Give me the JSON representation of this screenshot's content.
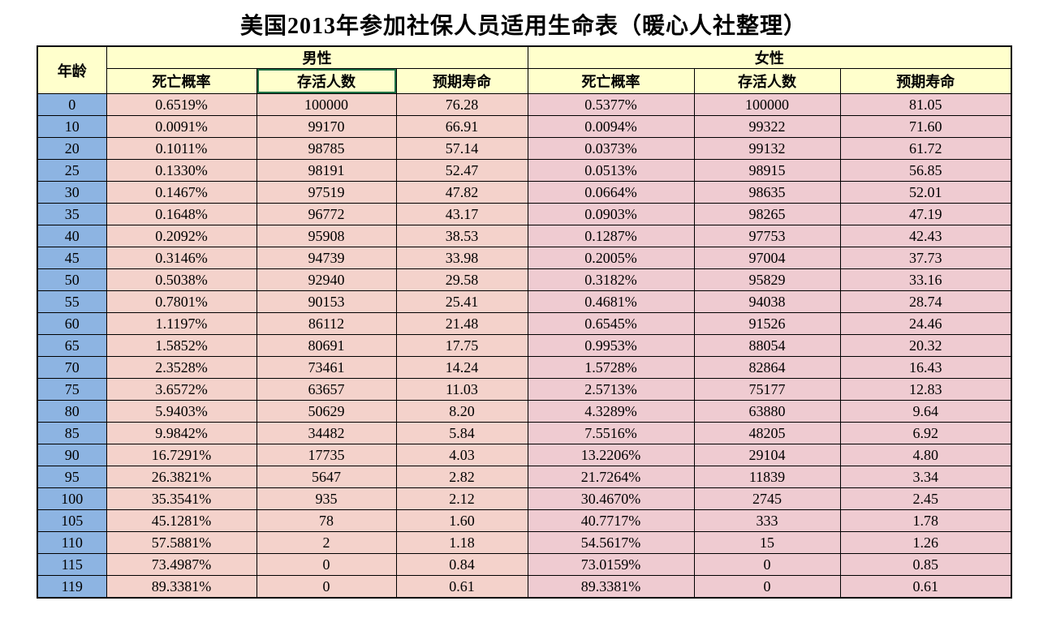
{
  "title": "美国2013年参加社保人员适用生命表（暖心人社整理）",
  "colors": {
    "header_bg": "#FFFFCC",
    "age_column_bg": "#8DB4E2",
    "male_columns_bg": "#F4D2CB",
    "female_columns_bg": "#EFCBD1",
    "selection_border": "#1F7246",
    "grid_border": "#000000"
  },
  "chart_data": {
    "type": "table",
    "title": "美国2013年参加社保人员适用生命表（暖心人社整理）",
    "age_header": "年龄",
    "groups": [
      {
        "label": "男性"
      },
      {
        "label": "女性"
      }
    ],
    "sub_headers": [
      "死亡概率",
      "存活人数",
      "预期寿命"
    ],
    "selected_header": "男性-存活人数",
    "rows": [
      {
        "age": "0",
        "male": [
          "0.6519%",
          "100000",
          "76.28"
        ],
        "female": [
          "0.5377%",
          "100000",
          "81.05"
        ]
      },
      {
        "age": "10",
        "male": [
          "0.0091%",
          "99170",
          "66.91"
        ],
        "female": [
          "0.0094%",
          "99322",
          "71.60"
        ]
      },
      {
        "age": "20",
        "male": [
          "0.1011%",
          "98785",
          "57.14"
        ],
        "female": [
          "0.0373%",
          "99132",
          "61.72"
        ]
      },
      {
        "age": "25",
        "male": [
          "0.1330%",
          "98191",
          "52.47"
        ],
        "female": [
          "0.0513%",
          "98915",
          "56.85"
        ]
      },
      {
        "age": "30",
        "male": [
          "0.1467%",
          "97519",
          "47.82"
        ],
        "female": [
          "0.0664%",
          "98635",
          "52.01"
        ]
      },
      {
        "age": "35",
        "male": [
          "0.1648%",
          "96772",
          "43.17"
        ],
        "female": [
          "0.0903%",
          "98265",
          "47.19"
        ]
      },
      {
        "age": "40",
        "male": [
          "0.2092%",
          "95908",
          "38.53"
        ],
        "female": [
          "0.1287%",
          "97753",
          "42.43"
        ]
      },
      {
        "age": "45",
        "male": [
          "0.3146%",
          "94739",
          "33.98"
        ],
        "female": [
          "0.2005%",
          "97004",
          "37.73"
        ]
      },
      {
        "age": "50",
        "male": [
          "0.5038%",
          "92940",
          "29.58"
        ],
        "female": [
          "0.3182%",
          "95829",
          "33.16"
        ]
      },
      {
        "age": "55",
        "male": [
          "0.7801%",
          "90153",
          "25.41"
        ],
        "female": [
          "0.4681%",
          "94038",
          "28.74"
        ]
      },
      {
        "age": "60",
        "male": [
          "1.1197%",
          "86112",
          "21.48"
        ],
        "female": [
          "0.6545%",
          "91526",
          "24.46"
        ]
      },
      {
        "age": "65",
        "male": [
          "1.5852%",
          "80691",
          "17.75"
        ],
        "female": [
          "0.9953%",
          "88054",
          "20.32"
        ]
      },
      {
        "age": "70",
        "male": [
          "2.3528%",
          "73461",
          "14.24"
        ],
        "female": [
          "1.5728%",
          "82864",
          "16.43"
        ]
      },
      {
        "age": "75",
        "male": [
          "3.6572%",
          "63657",
          "11.03"
        ],
        "female": [
          "2.5713%",
          "75177",
          "12.83"
        ]
      },
      {
        "age": "80",
        "male": [
          "5.9403%",
          "50629",
          "8.20"
        ],
        "female": [
          "4.3289%",
          "63880",
          "9.64"
        ]
      },
      {
        "age": "85",
        "male": [
          "9.9842%",
          "34482",
          "5.84"
        ],
        "female": [
          "7.5516%",
          "48205",
          "6.92"
        ]
      },
      {
        "age": "90",
        "male": [
          "16.7291%",
          "17735",
          "4.03"
        ],
        "female": [
          "13.2206%",
          "29104",
          "4.80"
        ]
      },
      {
        "age": "95",
        "male": [
          "26.3821%",
          "5647",
          "2.82"
        ],
        "female": [
          "21.7264%",
          "11839",
          "3.34"
        ]
      },
      {
        "age": "100",
        "male": [
          "35.3541%",
          "935",
          "2.12"
        ],
        "female": [
          "30.4670%",
          "2745",
          "2.45"
        ]
      },
      {
        "age": "105",
        "male": [
          "45.1281%",
          "78",
          "1.60"
        ],
        "female": [
          "40.7717%",
          "333",
          "1.78"
        ]
      },
      {
        "age": "110",
        "male": [
          "57.5881%",
          "2",
          "1.18"
        ],
        "female": [
          "54.5617%",
          "15",
          "1.26"
        ]
      },
      {
        "age": "115",
        "male": [
          "73.4987%",
          "0",
          "0.84"
        ],
        "female": [
          "73.0159%",
          "0",
          "0.85"
        ]
      },
      {
        "age": "119",
        "male": [
          "89.3381%",
          "0",
          "0.61"
        ],
        "female": [
          "89.3381%",
          "0",
          "0.61"
        ]
      }
    ]
  }
}
